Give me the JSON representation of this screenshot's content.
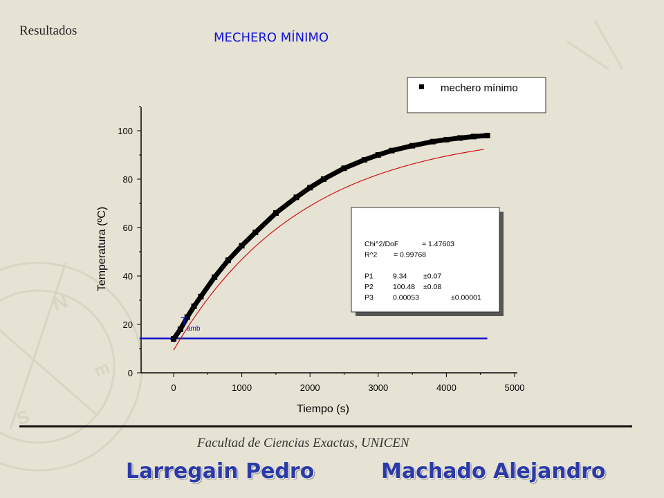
{
  "slide": {
    "section_label": "Resultados",
    "title": "MECHERO MÍNIMO",
    "footer_institution": "Facultad de Ciencias Exactas, UNICEN",
    "authors": [
      "Larregain Pedro",
      "Machado Alejandro"
    ]
  },
  "chart_data": {
    "type": "scatter",
    "title": "",
    "xlabel": "Tiempo (s)",
    "ylabel": "Temperatura (ºC)",
    "xlim": [
      -500,
      5000
    ],
    "ylim": [
      0,
      110
    ],
    "xticks": [
      0,
      1000,
      2000,
      3000,
      4000,
      5000
    ],
    "yticks": [
      0,
      20,
      40,
      60,
      80,
      100
    ],
    "grid": false,
    "legend_position": "top-right",
    "series": [
      {
        "name": "mechero mínimo",
        "kind": "data",
        "color": "#000000",
        "x": [
          0,
          100,
          200,
          300,
          400,
          600,
          800,
          1000,
          1200,
          1500,
          1800,
          2000,
          2200,
          2500,
          2800,
          3000,
          3200,
          3500,
          3800,
          4000,
          4200,
          4400,
          4600
        ],
        "y": [
          14,
          18,
          23,
          27.5,
          31.5,
          39.5,
          46.5,
          52.5,
          58,
          66,
          72.5,
          76.5,
          80,
          84.5,
          88,
          90,
          91.8,
          93.8,
          95.5,
          96.3,
          97,
          97.6,
          98
        ]
      },
      {
        "kind": "fit",
        "color": "#cc1111",
        "model": "P1 + (P2 - P1) * (1 - exp(-P3 * x))",
        "params": {
          "P1": 9.34,
          "P2": 100.48,
          "P3": 0.00053
        },
        "x_range": [
          0,
          4550
        ]
      },
      {
        "kind": "reference",
        "color": "#1111cc",
        "y": 14.2,
        "x_range": [
          -500,
          4600
        ]
      }
    ],
    "annotations": [
      {
        "kind": "label",
        "text": "T",
        "subscript": "amb",
        "color": "#1111cc",
        "x": 150,
        "y": 19
      }
    ],
    "fit_box": {
      "lines": [
        {
          "label": "Chi^2/DoF",
          "value": "= 1.47603",
          "error": ""
        },
        {
          "label": "R^2",
          "value": "=  0.99768",
          "error": ""
        },
        {
          "label": "",
          "value": "",
          "error": ""
        },
        {
          "label": "P1",
          "value": "9.34",
          "error": "±0.07"
        },
        {
          "label": "P2",
          "value": "100.48",
          "error": "±0.08"
        },
        {
          "label": "P3",
          "value": "0.00053",
          "error": "±0.00001"
        }
      ]
    }
  }
}
